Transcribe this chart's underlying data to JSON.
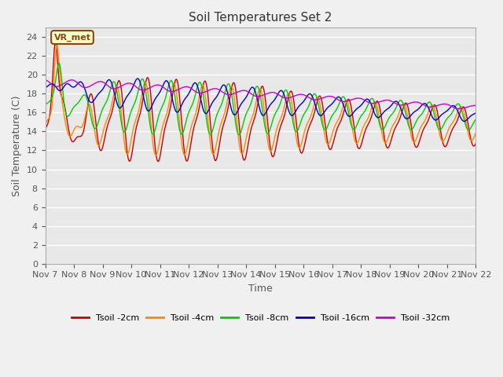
{
  "title": "Soil Temperatures Set 2",
  "xlabel": "Time",
  "ylabel": "Soil Temperature (C)",
  "ylim": [
    0,
    25
  ],
  "yticks": [
    0,
    2,
    4,
    6,
    8,
    10,
    12,
    14,
    16,
    18,
    20,
    22,
    24
  ],
  "xtick_labels": [
    "Nov 7",
    "Nov 8",
    "Nov 9",
    "Nov 10",
    "Nov 11",
    "Nov 12",
    "Nov 13",
    "Nov 14",
    "Nov 15",
    "Nov 16",
    "Nov 17",
    "Nov 18",
    "Nov 19",
    "Nov 20",
    "Nov 21",
    "Nov 22"
  ],
  "background_color": "#e8e8e8",
  "grid_color": "#ffffff",
  "series": {
    "Tsoil -2cm": {
      "color": "#cc0000",
      "linewidth": 1.0
    },
    "Tsoil -4cm": {
      "color": "#ff8800",
      "linewidth": 1.0
    },
    "Tsoil -8cm": {
      "color": "#00cc00",
      "linewidth": 1.0
    },
    "Tsoil -16cm": {
      "color": "#0000cc",
      "linewidth": 1.0
    },
    "Tsoil -32cm": {
      "color": "#cc00cc",
      "linewidth": 1.0
    }
  },
  "annotation_text": "VR_met",
  "annotation_color": "#8b4513",
  "fig_bg": "#f0f0f0"
}
